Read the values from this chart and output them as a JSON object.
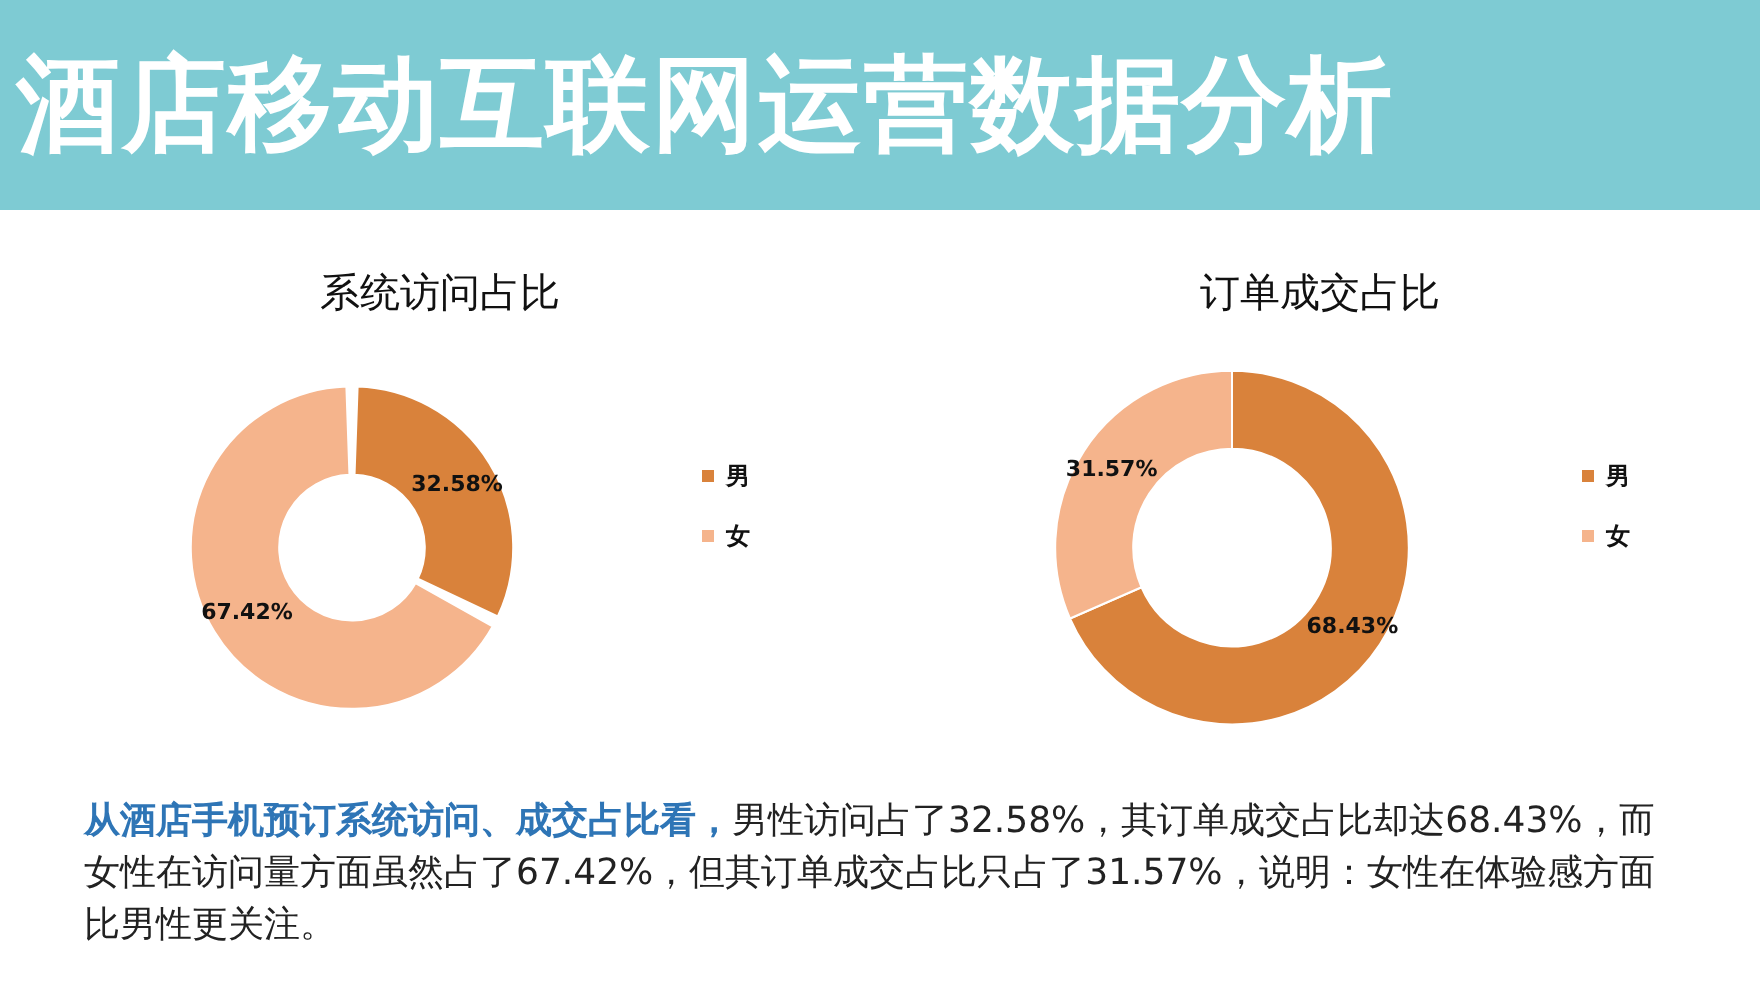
{
  "chart_data": [
    {
      "type": "donut",
      "title": "系统访问占比",
      "categories": [
        "男",
        "女"
      ],
      "values": [
        32.58,
        67.42
      ],
      "colors": [
        "#d9823b",
        "#f5b48c"
      ],
      "value_labels": [
        "32.58%",
        "67.42%"
      ],
      "legend": "right"
    },
    {
      "type": "donut",
      "title": "订单成交占比",
      "categories": [
        "男",
        "女"
      ],
      "values": [
        68.43,
        31.57
      ],
      "colors": [
        "#d9823b",
        "#f5b48c"
      ],
      "value_labels": [
        "68.43%",
        "31.57%"
      ],
      "legend": "right"
    },
    {
      "type": "other",
      "title": "酒店移动互联网运营数据分析",
      "annotations": [
        "从酒店手机预订系统访问、成交占比看，",
        "男性访问占了32.58%，其订单成交占比却达68.43%，而女性在访问量方面虽然占了67.42%，但其订单成交占比只占了31.57%，说明：女性在体验感方面比男性更关注。"
      ]
    }
  ]
}
